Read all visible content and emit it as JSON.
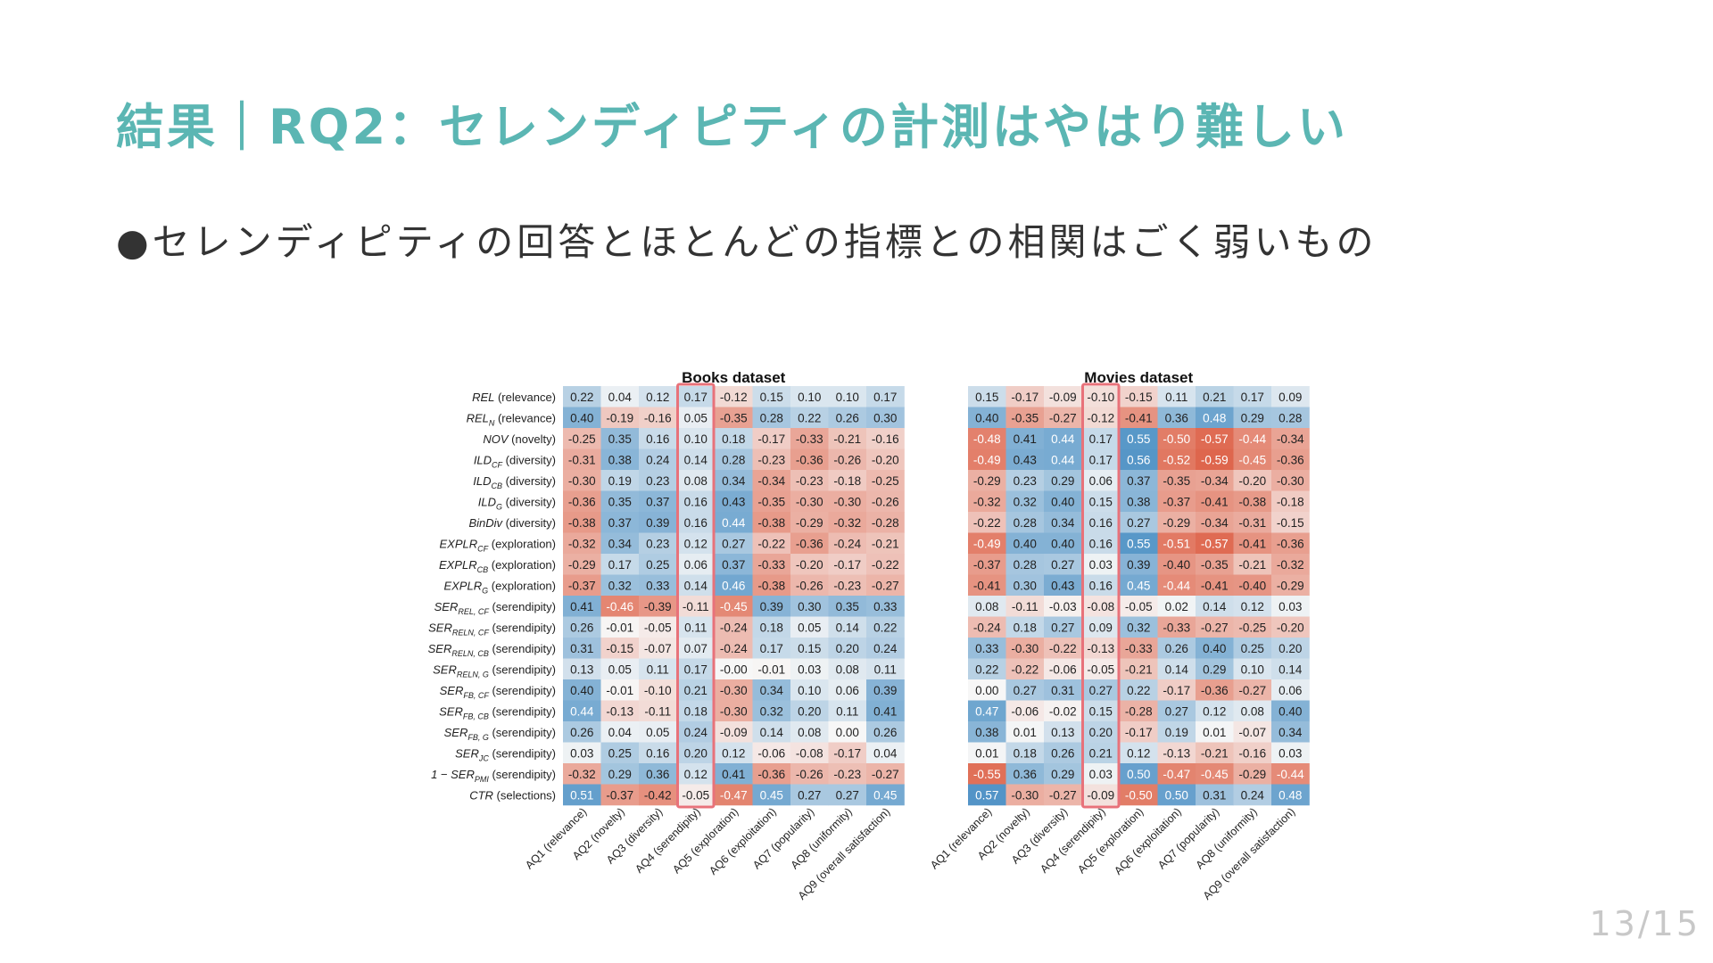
{
  "slide": {
    "title": "結果｜RQ2：セレンディピティの計測はやはり難しい",
    "bullet": "●セレンディピティの回答とほとんどの指標との相関はごく弱いもの",
    "page_number": "13/15"
  },
  "colors": {
    "title": "#5bb6b3",
    "highlight_box": "#e8727a",
    "positive": "#4a8fc4",
    "negative": "#e06a4e"
  },
  "chart_data": [
    {
      "type": "heatmap",
      "title": "Books dataset",
      "highlight_column": 3,
      "vmin": -0.6,
      "vmax": 0.6,
      "rows": [
        {
          "name": "REL",
          "sub": "",
          "suffix": " (relevance)"
        },
        {
          "name": "REL",
          "sub": "N",
          "suffix": " (relevance)"
        },
        {
          "name": "NOV",
          "sub": "",
          "suffix": " (novelty)"
        },
        {
          "name": "ILD",
          "sub": "CF",
          "suffix": " (diversity)"
        },
        {
          "name": "ILD",
          "sub": "CB",
          "suffix": " (diversity)"
        },
        {
          "name": "ILD",
          "sub": "G",
          "suffix": " (diversity)"
        },
        {
          "name": "BinDiv",
          "sub": "",
          "suffix": " (diversity)"
        },
        {
          "name": "EXPLR",
          "sub": "CF",
          "suffix": " (exploration)"
        },
        {
          "name": "EXPLR",
          "sub": "CB",
          "suffix": " (exploration)"
        },
        {
          "name": "EXPLR",
          "sub": "G",
          "suffix": " (exploration)"
        },
        {
          "name": "SER",
          "sub": "REL, CF",
          "suffix": " (serendipity)"
        },
        {
          "name": "SER",
          "sub": "RELN, CF",
          "suffix": " (serendipity)"
        },
        {
          "name": "SER",
          "sub": "RELN, CB",
          "suffix": " (serendipity)"
        },
        {
          "name": "SER",
          "sub": "RELN, G",
          "suffix": " (serendipity)"
        },
        {
          "name": "SER",
          "sub": "FB, CF",
          "suffix": " (serendipity)"
        },
        {
          "name": "SER",
          "sub": "FB, CB",
          "suffix": " (serendipity)"
        },
        {
          "name": "SER",
          "sub": "FB, G",
          "suffix": " (serendipity)"
        },
        {
          "name": "SER",
          "sub": "JC",
          "suffix": " (serendipity)"
        },
        {
          "name": "1 − SER",
          "sub": "PMI",
          "suffix": " (serendipity)"
        },
        {
          "name": "CTR",
          "sub": "",
          "suffix": " (selections)"
        }
      ],
      "columns": [
        "AQ1 (relevance)",
        "AQ2 (novelty)",
        "AQ3 (diversity)",
        "AQ4 (serendipity)",
        "AQ5 (exploration)",
        "AQ6 (exploitation)",
        "AQ7 (popularity)",
        "AQ8 (uniformity)",
        "AQ9 (overall satisfaction)"
      ],
      "values": [
        [
          0.22,
          0.04,
          0.12,
          0.17,
          -0.12,
          0.15,
          0.1,
          0.1,
          0.17
        ],
        [
          0.4,
          -0.19,
          -0.16,
          0.05,
          -0.35,
          0.28,
          0.22,
          0.26,
          0.3
        ],
        [
          -0.25,
          0.35,
          0.16,
          0.1,
          0.18,
          -0.17,
          -0.33,
          -0.21,
          -0.16
        ],
        [
          -0.31,
          0.38,
          0.24,
          0.14,
          0.28,
          -0.23,
          -0.36,
          -0.26,
          -0.2
        ],
        [
          -0.3,
          0.19,
          0.23,
          0.08,
          0.34,
          -0.34,
          -0.23,
          -0.18,
          -0.25
        ],
        [
          -0.36,
          0.35,
          0.37,
          0.16,
          0.43,
          -0.35,
          -0.3,
          -0.3,
          -0.26
        ],
        [
          -0.38,
          0.37,
          0.39,
          0.16,
          0.44,
          -0.38,
          -0.29,
          -0.32,
          -0.28
        ],
        [
          -0.32,
          0.34,
          0.23,
          0.12,
          0.27,
          -0.22,
          -0.36,
          -0.24,
          -0.21
        ],
        [
          -0.29,
          0.17,
          0.25,
          0.06,
          0.37,
          -0.33,
          -0.2,
          -0.17,
          -0.22
        ],
        [
          -0.37,
          0.32,
          0.33,
          0.14,
          0.46,
          -0.38,
          -0.26,
          -0.23,
          -0.27
        ],
        [
          0.41,
          -0.46,
          -0.39,
          -0.11,
          -0.45,
          0.39,
          0.3,
          0.35,
          0.33
        ],
        [
          0.26,
          -0.01,
          -0.05,
          0.11,
          -0.24,
          0.18,
          0.05,
          0.14,
          0.22
        ],
        [
          0.31,
          -0.15,
          -0.07,
          0.07,
          -0.24,
          0.17,
          0.15,
          0.2,
          0.24
        ],
        [
          0.13,
          0.05,
          0.11,
          0.17,
          -0.0,
          -0.01,
          0.03,
          0.08,
          0.11
        ],
        [
          0.4,
          -0.01,
          -0.1,
          0.21,
          -0.3,
          0.34,
          0.1,
          0.06,
          0.39
        ],
        [
          0.44,
          -0.13,
          -0.11,
          0.18,
          -0.3,
          0.32,
          0.2,
          0.11,
          0.41
        ],
        [
          0.26,
          0.04,
          0.05,
          0.24,
          -0.09,
          0.14,
          0.08,
          0.0,
          0.26
        ],
        [
          0.03,
          0.25,
          0.16,
          0.2,
          0.12,
          -0.06,
          -0.08,
          -0.17,
          0.04
        ],
        [
          -0.32,
          0.29,
          0.36,
          0.12,
          0.41,
          -0.36,
          -0.26,
          -0.23,
          -0.27
        ],
        [
          0.51,
          -0.37,
          -0.42,
          -0.05,
          -0.47,
          0.45,
          0.27,
          0.27,
          0.45
        ]
      ]
    },
    {
      "type": "heatmap",
      "title": "Movies dataset",
      "highlight_column": 3,
      "vmin": -0.6,
      "vmax": 0.6,
      "columns": [
        "AQ1 (relevance)",
        "AQ2 (novelty)",
        "AQ3 (diversity)",
        "AQ4 (serendipity)",
        "AQ5 (exploration)",
        "AQ6 (exploitation)",
        "AQ7 (popularity)",
        "AQ8 (uniformity)",
        "AQ9 (overall satisfaction)"
      ],
      "values": [
        [
          0.15,
          -0.17,
          -0.09,
          -0.1,
          -0.15,
          0.11,
          0.21,
          0.17,
          0.09
        ],
        [
          0.4,
          -0.35,
          -0.27,
          -0.12,
          -0.41,
          0.36,
          0.48,
          0.29,
          0.28
        ],
        [
          -0.48,
          0.41,
          0.44,
          0.17,
          0.55,
          -0.5,
          -0.57,
          -0.44,
          -0.34
        ],
        [
          -0.49,
          0.43,
          0.44,
          0.17,
          0.56,
          -0.52,
          -0.59,
          -0.45,
          -0.36
        ],
        [
          -0.29,
          0.23,
          0.29,
          0.06,
          0.37,
          -0.35,
          -0.34,
          -0.2,
          -0.3
        ],
        [
          -0.32,
          0.32,
          0.4,
          0.15,
          0.38,
          -0.37,
          -0.41,
          -0.38,
          -0.18
        ],
        [
          -0.22,
          0.28,
          0.34,
          0.16,
          0.27,
          -0.29,
          -0.34,
          -0.31,
          -0.15
        ],
        [
          -0.49,
          0.4,
          0.4,
          0.16,
          0.55,
          -0.51,
          -0.57,
          -0.41,
          -0.36
        ],
        [
          -0.37,
          0.28,
          0.27,
          0.03,
          0.39,
          -0.4,
          -0.35,
          -0.21,
          -0.32
        ],
        [
          -0.41,
          0.3,
          0.43,
          0.16,
          0.45,
          -0.44,
          -0.41,
          -0.4,
          -0.29
        ],
        [
          0.08,
          -0.11,
          -0.03,
          -0.08,
          -0.05,
          0.02,
          0.14,
          0.12,
          0.03
        ],
        [
          -0.24,
          0.18,
          0.27,
          0.09,
          0.32,
          -0.33,
          -0.27,
          -0.25,
          -0.2
        ],
        [
          0.33,
          -0.3,
          -0.22,
          -0.13,
          -0.33,
          0.26,
          0.4,
          0.25,
          0.2
        ],
        [
          0.22,
          -0.22,
          -0.06,
          -0.05,
          -0.21,
          0.14,
          0.29,
          0.1,
          0.14
        ],
        [
          0.0,
          0.27,
          0.31,
          0.27,
          0.22,
          -0.17,
          -0.36,
          -0.27,
          0.06
        ],
        [
          0.47,
          -0.06,
          -0.02,
          0.15,
          -0.28,
          0.27,
          0.12,
          0.08,
          0.4
        ],
        [
          0.38,
          0.01,
          0.13,
          0.2,
          -0.17,
          0.19,
          0.01,
          -0.07,
          0.34
        ],
        [
          0.01,
          0.18,
          0.26,
          0.21,
          0.12,
          -0.13,
          -0.21,
          -0.16,
          0.03
        ],
        [
          -0.55,
          0.36,
          0.29,
          0.03,
          0.5,
          -0.47,
          -0.45,
          -0.29,
          -0.44
        ],
        [
          0.57,
          -0.3,
          -0.27,
          -0.09,
          -0.5,
          0.5,
          0.31,
          0.24,
          0.48
        ]
      ]
    }
  ]
}
